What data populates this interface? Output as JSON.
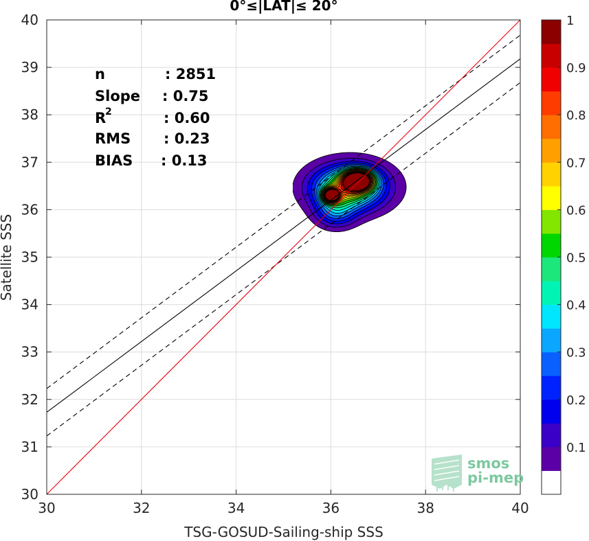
{
  "chart_data": {
    "type": "contour-scatter",
    "title": "0°≤|LAT|≤ 20°",
    "xlabel": "TSG-GOSUD-Sailing-ship SSS",
    "ylabel": "Satellite SSS",
    "xlim": [
      30,
      40
    ],
    "ylim": [
      30,
      40
    ],
    "xticks": [
      "30",
      "32",
      "34",
      "36",
      "38",
      "40"
    ],
    "yticks": [
      "30",
      "31",
      "32",
      "33",
      "34",
      "35",
      "36",
      "37",
      "38",
      "39",
      "40"
    ],
    "grid": true,
    "stats": [
      {
        "label": "n",
        "value": ": 2851"
      },
      {
        "label": "Slope",
        "value": ": 0.75"
      },
      {
        "label": "R",
        "sup": "2",
        "value": ": 0.60"
      },
      {
        "label": "RMS",
        "value": ": 0.23"
      },
      {
        "label": "BIAS",
        "value": ": 0.13"
      }
    ],
    "lines": {
      "identity": {
        "color": "#e8000b",
        "x": [
          30,
          40
        ],
        "y": [
          30,
          40
        ]
      },
      "fit": {
        "color": "#000000",
        "x": [
          30,
          40
        ],
        "y": [
          31.73,
          39.18
        ]
      },
      "fit_upper": {
        "color": "#000000",
        "style": "dashed",
        "x": [
          30,
          40
        ],
        "y": [
          32.23,
          39.68
        ]
      },
      "fit_lower": {
        "color": "#000000",
        "style": "dashed",
        "x": [
          30,
          40
        ],
        "y": [
          31.23,
          38.68
        ]
      }
    },
    "density_contours": {
      "levels": [
        0.05,
        0.1,
        0.15,
        0.2,
        0.25,
        0.3,
        0.35,
        0.4,
        0.45,
        0.5,
        0.55,
        0.6,
        0.65,
        0.7,
        0.75,
        0.8,
        0.85,
        0.9,
        0.95
      ],
      "peaks": [
        {
          "x": 36.0,
          "y": 36.3,
          "amp": 0.88,
          "sx": 0.12,
          "sy": 0.1
        },
        {
          "x": 36.58,
          "y": 36.62,
          "amp": 1.0,
          "sx": 0.22,
          "sy": 0.15
        },
        {
          "x": 36.35,
          "y": 36.45,
          "amp": 0.55,
          "sx": 0.45,
          "sy": 0.28
        },
        {
          "x": 36.1,
          "y": 35.95,
          "amp": 0.22,
          "sx": 0.28,
          "sy": 0.22
        },
        {
          "x": 36.45,
          "y": 36.5,
          "amp": 0.12,
          "sx": 0.75,
          "sy": 0.45
        }
      ]
    },
    "colorbar": {
      "ticks": [
        "0.1",
        "0.2",
        "0.3",
        "0.4",
        "0.5",
        "0.6",
        "0.7",
        "0.8",
        "0.9",
        "1"
      ],
      "tick_values": [
        0.1,
        0.2,
        0.3,
        0.4,
        0.5,
        0.6,
        0.7,
        0.8,
        0.9,
        1.0
      ],
      "range": [
        0,
        1
      ],
      "colors": [
        "#ffffff",
        "#5b00a6",
        "#3a00c8",
        "#0000ee",
        "#0022ff",
        "#0a60ff",
        "#0aa6ff",
        "#00e6ff",
        "#00f5b5",
        "#1ce77a",
        "#00d700",
        "#82e600",
        "#ffff00",
        "#ffd200",
        "#ff9f00",
        "#ff6e00",
        "#ff3c00",
        "#f00000",
        "#c80000",
        "#8c0000"
      ]
    }
  },
  "logo": {
    "line1": "smos",
    "line2": "pi-mep"
  }
}
